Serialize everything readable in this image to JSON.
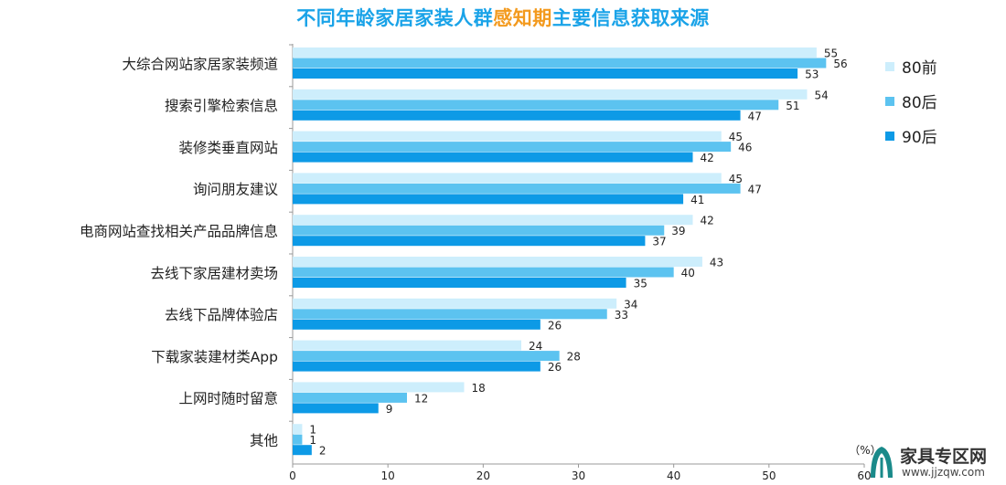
{
  "title_parts": {
    "before": "不同年龄家居家装人群",
    "highlight": "感知期",
    "after": "主要信息获取来源"
  },
  "watermark": {
    "name": "家具专区网",
    "url": "www.jjzqw.com"
  },
  "colors": {
    "title": "#1aa3e8",
    "highlight": "#f39a1e",
    "s1": "#cdeefc",
    "s2": "#5cc3f0",
    "s3": "#0d9ae6"
  },
  "chart_data": {
    "type": "bar",
    "orientation": "horizontal",
    "title": "不同年龄家居家装人群感知期主要信息获取来源",
    "unit_label": "（%）",
    "xlim": [
      0,
      60
    ],
    "xticks": [
      0,
      10,
      20,
      30,
      40,
      50,
      60
    ],
    "legend_position": "right",
    "categories": [
      "大综合网站家居家装频道",
      "搜索引擎检索信息",
      "装修类垂直网站",
      "询问朋友建议",
      "电商网站查找相关产品品牌信息",
      "去线下家居建材卖场",
      "去线下品牌体验店",
      "下载家装建材类App",
      "上网时随时留意",
      "其他"
    ],
    "series": [
      {
        "name": "80前",
        "color": "#cdeefc",
        "values": [
          55,
          54,
          45,
          45,
          42,
          43,
          34,
          24,
          18,
          1
        ]
      },
      {
        "name": "80后",
        "color": "#5cc3f0",
        "values": [
          56,
          51,
          46,
          47,
          39,
          40,
          33,
          28,
          12,
          1
        ]
      },
      {
        "name": "90后",
        "color": "#0d9ae6",
        "values": [
          53,
          47,
          42,
          41,
          37,
          35,
          26,
          26,
          9,
          2
        ]
      }
    ]
  }
}
